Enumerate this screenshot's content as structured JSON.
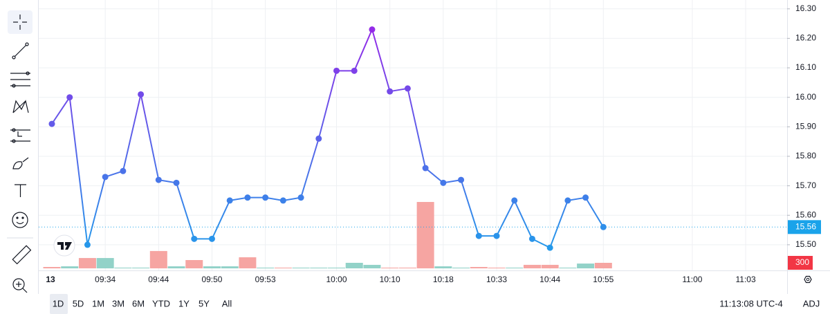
{
  "chart_data": {
    "type": "line",
    "categories": [
      "13",
      null,
      null,
      "09:34",
      null,
      null,
      "09:44",
      null,
      null,
      "09:50",
      null,
      null,
      "09:53",
      null,
      null,
      null,
      "10:00",
      null,
      null,
      "10:10",
      null,
      null,
      "10:18",
      null,
      null,
      "10:33",
      null,
      null,
      "10:44",
      null,
      null,
      "10:55",
      null,
      null,
      null,
      null,
      "11:00",
      null,
      null,
      "11:03"
    ],
    "values": [
      15.91,
      16.0,
      15.5,
      15.73,
      15.75,
      16.01,
      15.72,
      15.71,
      15.52,
      15.52,
      15.65,
      15.66,
      15.66,
      15.65,
      15.66,
      15.86,
      16.09,
      16.09,
      16.23,
      16.02,
      16.03,
      15.76,
      15.71,
      15.72,
      15.53,
      15.53,
      15.65,
      15.52,
      15.49,
      15.65,
      15.66,
      15.56,
      null,
      null,
      null,
      null,
      null,
      null,
      null,
      null
    ],
    "color_high": "#a21ce8",
    "color_low": "#1aa3ea",
    "ylim": [
      15.42,
      16.33
    ],
    "yticks": [
      {
        "value": 15.5,
        "label": "15.50"
      },
      {
        "value": 15.6,
        "label": "15.60"
      },
      {
        "value": 15.7,
        "label": "15.70"
      },
      {
        "value": 15.8,
        "label": "15.80"
      },
      {
        "value": 15.9,
        "label": "15.90"
      },
      {
        "value": 16.0,
        "label": "16.00"
      },
      {
        "value": 16.1,
        "label": "16.10"
      },
      {
        "value": 16.2,
        "label": "16.20"
      },
      {
        "value": 16.3,
        "label": "16.30"
      }
    ],
    "grid": true,
    "volume": {
      "values": [
        75,
        110,
        560,
        560,
        40,
        40,
        940,
        110,
        450,
        110,
        110,
        600,
        40,
        40,
        40,
        40,
        40,
        300,
        190,
        40,
        40,
        3600,
        110,
        40,
        75,
        40,
        40,
        190,
        190,
        40,
        260,
        300,
        null,
        null,
        null,
        null,
        null,
        null,
        null,
        null
      ],
      "direction": [
        "down",
        "up",
        "down",
        "up",
        "up",
        "up",
        "down",
        "up",
        "down",
        "up",
        "up",
        "down",
        "up",
        "down",
        "up",
        "up",
        "up",
        "up",
        "up",
        "down",
        "down",
        "down",
        "up",
        "up",
        "down",
        "down",
        "up",
        "down",
        "down",
        "up",
        "up",
        "down",
        null,
        null,
        null,
        null,
        null,
        null,
        null,
        null
      ],
      "color_up": "#92d2c8",
      "color_down": "#f6a5a2",
      "ylim": [
        0,
        3750
      ]
    }
  },
  "toolbar": {
    "ranges": [
      "1D",
      "5D",
      "1M",
      "3M",
      "6M",
      "YTD",
      "1Y",
      "5Y",
      "All"
    ],
    "selected": 0,
    "clock": "11:13:08 UTC-4",
    "adjust": "ADJ"
  }
}
